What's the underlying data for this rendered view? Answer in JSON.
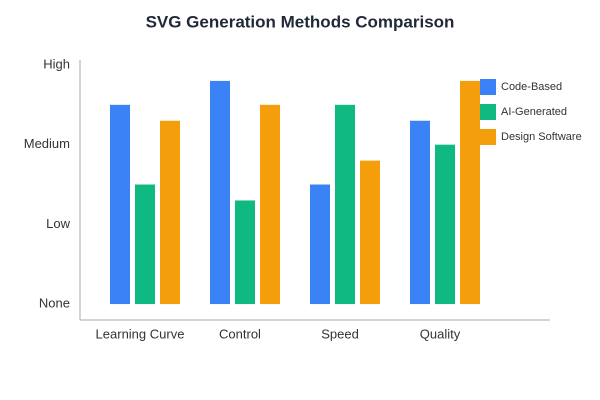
{
  "chart_data": {
    "type": "bar",
    "title": "SVG Generation Methods Comparison",
    "categories": [
      "Learning Curve",
      "Control",
      "Speed",
      "Quality"
    ],
    "series": [
      {
        "name": "Code-Based",
        "color": "#3b82f6",
        "values": [
          2.5,
          2.8,
          1.5,
          2.3
        ]
      },
      {
        "name": "AI-Generated",
        "color": "#10b981",
        "values": [
          1.5,
          1.3,
          2.5,
          2.0
        ]
      },
      {
        "name": "Design Software",
        "color": "#f59e0b",
        "values": [
          2.3,
          2.5,
          1.8,
          2.8
        ]
      }
    ],
    "ylim": [
      -0.2,
      3.1
    ],
    "yticks": [
      {
        "value": 0,
        "label": "None"
      },
      {
        "value": 1,
        "label": "Low"
      },
      {
        "value": 2,
        "label": "Medium"
      },
      {
        "value": 3,
        "label": "High"
      }
    ],
    "grid": false,
    "legend": "top-right"
  }
}
